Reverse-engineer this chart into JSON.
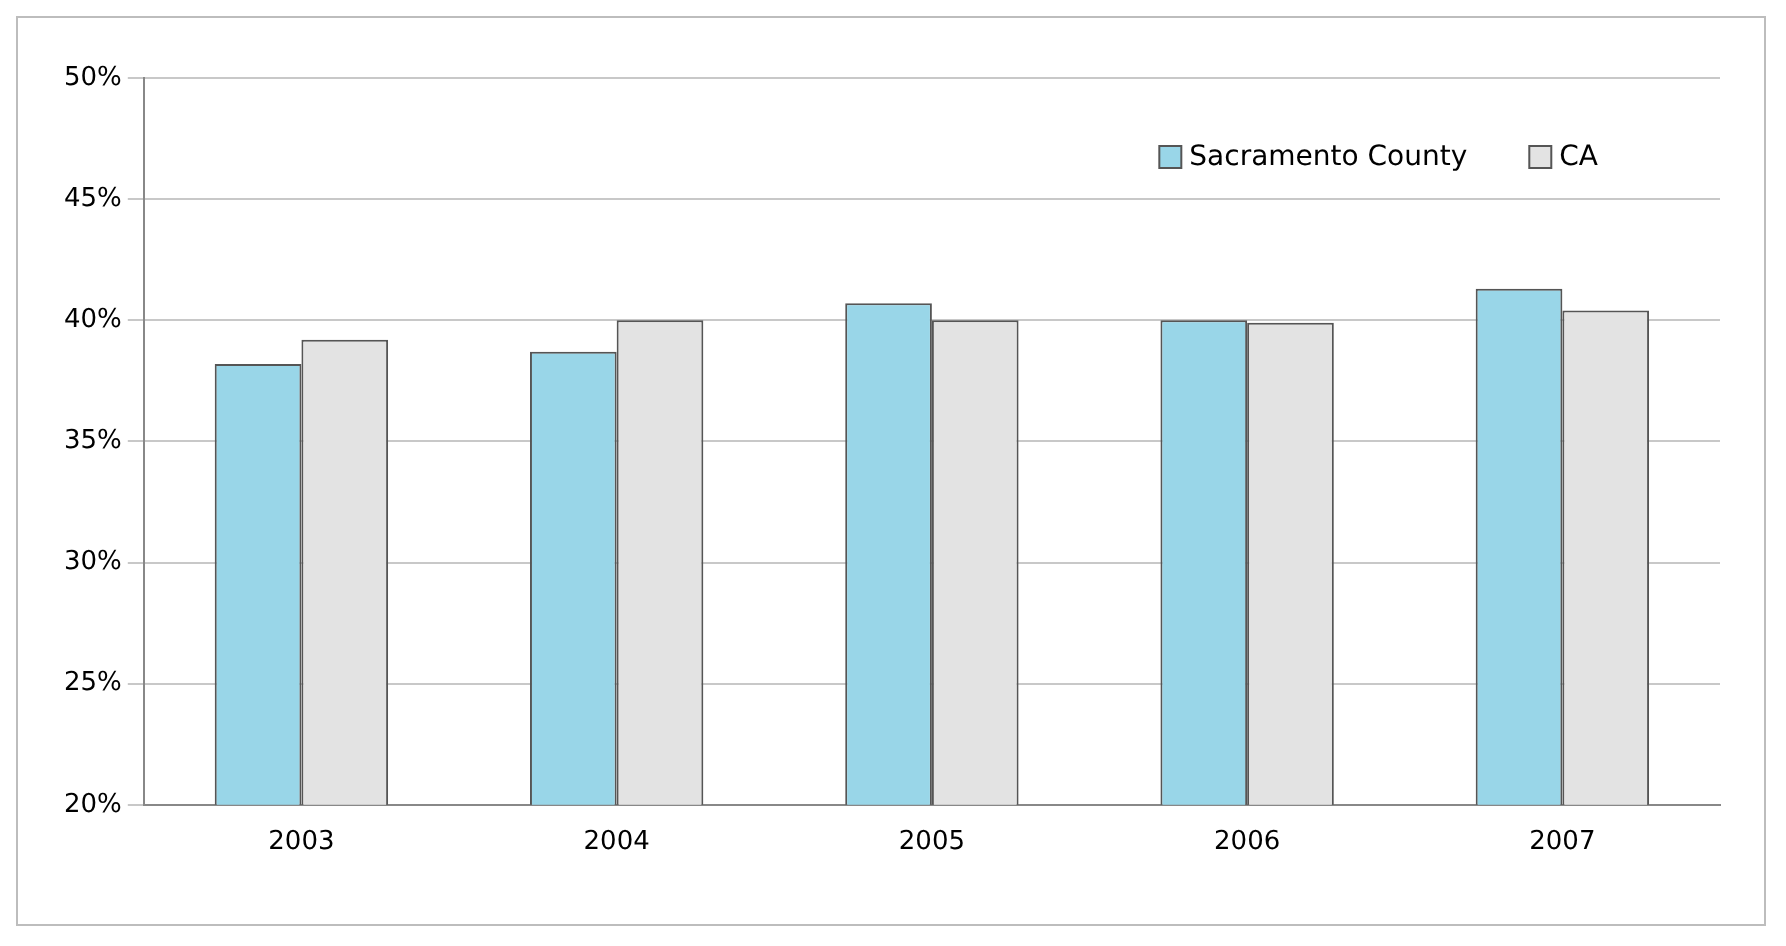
{
  "chart_data": {
    "type": "bar",
    "categories": [
      "2003",
      "2004",
      "2005",
      "2006",
      "2007"
    ],
    "series": [
      {
        "name": "Sacramento County",
        "color": "#99d6e8",
        "values": [
          38.2,
          38.7,
          40.7,
          40.0,
          41.3
        ]
      },
      {
        "name": "CA",
        "color": "#e3e3e3",
        "values": [
          39.2,
          40.0,
          40.0,
          39.9,
          40.4
        ]
      }
    ],
    "ylim": [
      20,
      50
    ],
    "yticks": [
      {
        "value": 20,
        "label": "20%"
      },
      {
        "value": 25,
        "label": "25%"
      },
      {
        "value": 30,
        "label": "30%"
      },
      {
        "value": 35,
        "label": "35%"
      },
      {
        "value": 40,
        "label": "40%"
      },
      {
        "value": 45,
        "label": "45%"
      },
      {
        "value": 50,
        "label": "50%"
      }
    ],
    "grid": "y",
    "legend": "top right"
  }
}
